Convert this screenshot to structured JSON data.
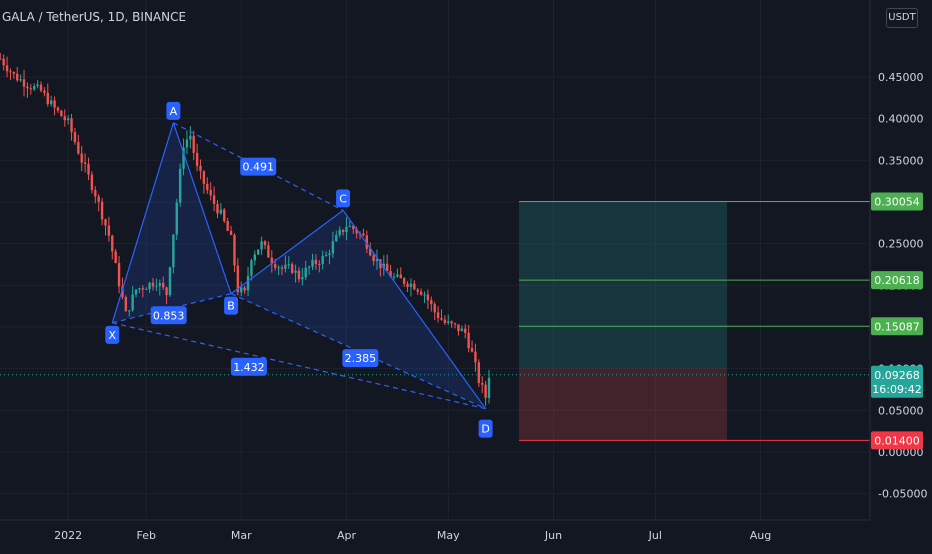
{
  "header": {
    "symbol": "GALA / TetherUS, 1D, BINANCE",
    "currency": "USDT"
  },
  "price_axis": {
    "ticks": [
      "0.45000",
      "0.40000",
      "0.35000",
      "0.30000",
      "0.25000",
      "0.20000",
      "0.15000",
      "0.10000",
      "0.05000",
      "0.00000",
      "-0.05000"
    ],
    "current_price": "0.09268",
    "countdown": "16:09:42"
  },
  "time_axis": {
    "ticks": [
      "2022",
      "Feb",
      "Mar",
      "Apr",
      "May",
      "Jun",
      "Jul",
      "Aug"
    ]
  },
  "position": {
    "targets": [
      "0.30054",
      "0.20618",
      "0.15087"
    ],
    "stop": "0.01400"
  },
  "harmonic": {
    "points": [
      "X",
      "A",
      "B",
      "C",
      "D"
    ],
    "ratios": {
      "xb": "0.853",
      "ac": "0.491",
      "bd": "2.385",
      "xd": "1.432"
    }
  },
  "colors": {
    "background": "#131722",
    "up": "#26a69a",
    "down": "#ef5350",
    "pattern": "#2962ff",
    "target_line": "#4caf50",
    "stop_line": "#f23645"
  },
  "chart_data": {
    "type": "candlestick",
    "title": "GALA / TetherUS, 1D, BINANCE",
    "x_ticks": [
      "2022",
      "Feb",
      "Mar",
      "Apr",
      "May",
      "Jun",
      "Jul",
      "Aug"
    ],
    "y_ticks": [
      0.45,
      0.4,
      0.35,
      0.3,
      0.25,
      0.2,
      0.15,
      0.1,
      0.05,
      0.0,
      -0.05
    ],
    "ylim": [
      -0.077,
      0.478
    ],
    "last_price": 0.09268,
    "pattern_points": [
      {
        "label": "X",
        "date": "2022-01-22",
        "price": 0.155
      },
      {
        "label": "A",
        "date": "2022-02-09",
        "price": 0.395
      },
      {
        "label": "B",
        "date": "2022-02-26",
        "price": 0.19
      },
      {
        "label": "C",
        "date": "2022-03-31",
        "price": 0.29
      },
      {
        "label": "D",
        "date": "2022-05-12",
        "price": 0.052
      }
    ],
    "ratios": {
      "XB": 0.853,
      "AC": 0.491,
      "BD": 2.385,
      "XD": 1.432
    },
    "take_profit_levels": [
      0.30054,
      0.20618,
      0.15087
    ],
    "stop_loss": 0.014,
    "grid": true
  }
}
